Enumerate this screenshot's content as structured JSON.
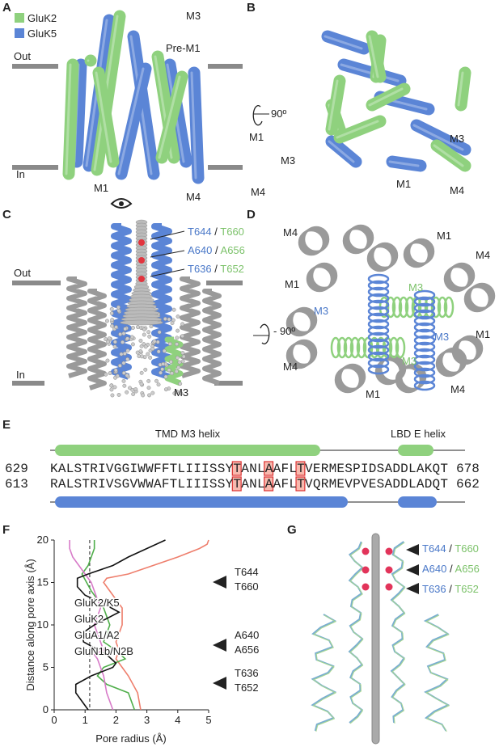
{
  "panels": {
    "a": {
      "label": "A",
      "legend": [
        {
          "name": "GluK2",
          "color": "#8fd17e"
        },
        {
          "name": "GluK5",
          "color": "#5b85d6"
        }
      ],
      "labels": [
        "M3",
        "Pre-M1",
        "Out",
        "In",
        "M1",
        "M4"
      ]
    },
    "b": {
      "label": "B",
      "rotation": "90º",
      "labels": [
        "M1",
        "M3",
        "M3",
        "M1",
        "M4",
        "M4"
      ]
    },
    "c": {
      "label": "C",
      "separator": "/",
      "residues": [
        {
          "k5": "T644",
          "k2": "T660"
        },
        {
          "k5": "A640",
          "k2": "A656"
        },
        {
          "k5": "T636",
          "k2": "T652"
        }
      ],
      "labels": [
        "Out",
        "In",
        "M3"
      ]
    },
    "d": {
      "label": "D",
      "rotation": "- 90º",
      "labels": [
        "M4",
        "M1",
        "M4",
        "M1",
        "M3",
        "M3",
        "M3",
        "M3",
        "M1",
        "M4",
        "M1",
        "M4"
      ]
    },
    "e": {
      "label": "E",
      "helix_labels": [
        "TMD M3 helix",
        "LBD E helix"
      ],
      "rows": [
        {
          "start": 629,
          "sequence": "KALSTRIVGGIWWFFTLIIISSYTANLAAFLTVERMESPIDSADDLAKQT",
          "end": 678
        },
        {
          "start": 613,
          "sequence": "RALSTRIVSGVWWAFTLIIISSYTANLAAFLTVQRMEVPVESADDLADQT",
          "end": 662
        }
      ]
    },
    "g": {
      "label": "G",
      "separator": "/",
      "residues": [
        {
          "k5": "T644",
          "k2": "T660"
        },
        {
          "k5": "A640",
          "k2": "A656"
        },
        {
          "k5": "T636",
          "k2": "T652"
        }
      ]
    }
  },
  "chart_data": {
    "type": "line",
    "label": "F",
    "xlabel": "Pore radius (Å)",
    "ylabel": "Distance along pore axis (Å)",
    "xlim": [
      0,
      5
    ],
    "ylim": [
      0,
      20
    ],
    "xticks": [
      0,
      1,
      2,
      3,
      4,
      5
    ],
    "yticks": [
      0,
      5,
      10,
      15,
      20
    ],
    "reference_x": 1.15,
    "series": [
      {
        "name": "GluK2/K5",
        "color": "#111111",
        "x": [
          1.1,
          0.9,
          0.7,
          0.7,
          1.2,
          1.9,
          2.0,
          1.7,
          0.95,
          0.9,
          1.3,
          2.1,
          1.6,
          1.0,
          0.75,
          0.75,
          1.1,
          1.9,
          2.4,
          3.0,
          3.6
        ],
        "values": [
          0,
          1,
          2,
          3,
          4,
          5,
          5.5,
          6.5,
          8,
          9,
          10,
          11.5,
          12.5,
          13.5,
          14.5,
          15.5,
          16,
          17,
          18,
          19,
          20
        ]
      },
      {
        "name": "GluK2",
        "color": "#d77ac8",
        "x": [
          1.9,
          1.7,
          1.6,
          1.5,
          1.4,
          1.3,
          1.6,
          1.5,
          1.3,
          1.5,
          1.3,
          1.2,
          1.0,
          0.8,
          0.6,
          0.5,
          0.5
        ],
        "values": [
          0,
          2,
          4,
          5,
          6,
          6.5,
          7,
          8,
          10,
          12,
          14,
          15,
          16,
          17,
          18,
          19,
          20
        ]
      },
      {
        "name": "GluA1/A2",
        "color": "#4fae4a",
        "x": [
          2.6,
          2.4,
          1.7,
          1.4,
          1.6,
          2.3,
          2.0,
          1.6,
          1.8,
          1.6,
          1.2,
          0.9,
          1.1,
          1.2,
          1.3,
          1.3
        ],
        "values": [
          0,
          2,
          3,
          4,
          5,
          6,
          7,
          8,
          10,
          12,
          14,
          16,
          17,
          18,
          19,
          20
        ]
      },
      {
        "name": "GluN1b/N2B",
        "color": "#ee7e6c",
        "x": [
          2.8,
          2.7,
          2.4,
          2.2,
          2.0,
          2.1,
          2.0,
          2.2,
          2.2,
          1.8,
          1.6,
          1.7,
          2.4,
          3.2,
          4.0,
          4.7,
          4.95,
          5.0
        ],
        "values": [
          0,
          2,
          4,
          5,
          6,
          7,
          8,
          10,
          12,
          14,
          15,
          15.5,
          16,
          17,
          18,
          19,
          19.5,
          20
        ]
      }
    ],
    "annotations": [
      {
        "k5": "T644",
        "k2": "T660"
      },
      {
        "k5": "A640",
        "k2": "A656"
      },
      {
        "k5": "T636",
        "k2": "T652"
      }
    ]
  }
}
